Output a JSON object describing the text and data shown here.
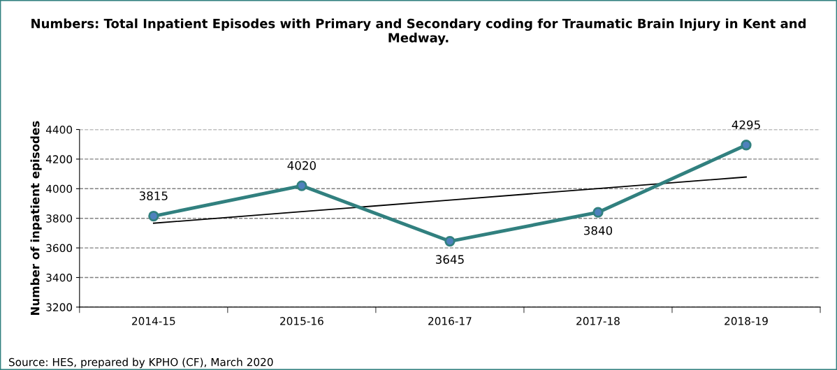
{
  "chart_data": {
    "type": "line",
    "title": "Numbers: Total Inpatient Episodes with Primary and Secondary coding for Traumatic Brain Injury in Kent and Medway.",
    "ylabel": "Number of inpatient episodes",
    "categories": [
      "2014-15",
      "2015-16",
      "2016-17",
      "2017-18",
      "2018-19"
    ],
    "series": [
      {
        "color": "#31807f",
        "values": [
          3815,
          4020,
          3645,
          3840,
          4295
        ],
        "marker": "circle",
        "data_labels": true
      },
      {
        "type": "line",
        "color": "#000000",
        "values": [
          3767,
          3845,
          3923,
          4001,
          4079
        ],
        "marker": "none"
      }
    ],
    "ylim": [
      3200,
      4400
    ],
    "yticks": [
      3200,
      3400,
      3600,
      3800,
      4000,
      4200,
      4400
    ],
    "grid": "y",
    "line_style": "solid",
    "annotations": [
      "Source: HES, prepared by KPHO (CF), March 2020"
    ]
  }
}
